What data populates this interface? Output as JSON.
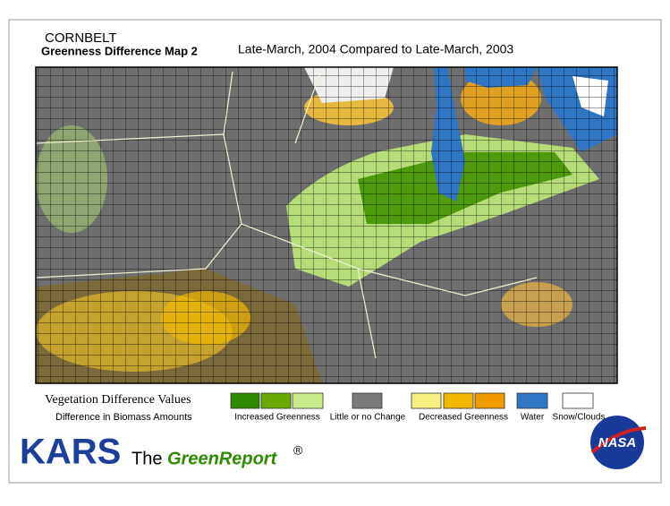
{
  "header": {
    "region": "CORNBELT",
    "title": "Greenness Difference Map 2",
    "comparison": "Late-March, 2004 Compared to Late-March, 2003"
  },
  "legend": {
    "title": "Vegetation Difference Values",
    "subtitle": "Difference in Biomass Amounts",
    "groups": [
      {
        "label": "Increased Greenness"
      },
      {
        "label": "Little or no Change"
      },
      {
        "label": "Decreased Greenness"
      },
      {
        "label": "Water"
      },
      {
        "label": "Snow/Clouds"
      }
    ]
  },
  "footer": {
    "brand": "KARS",
    "the": "The",
    "product": "GreenReport",
    "registered": "®",
    "agency": "NASA"
  }
}
